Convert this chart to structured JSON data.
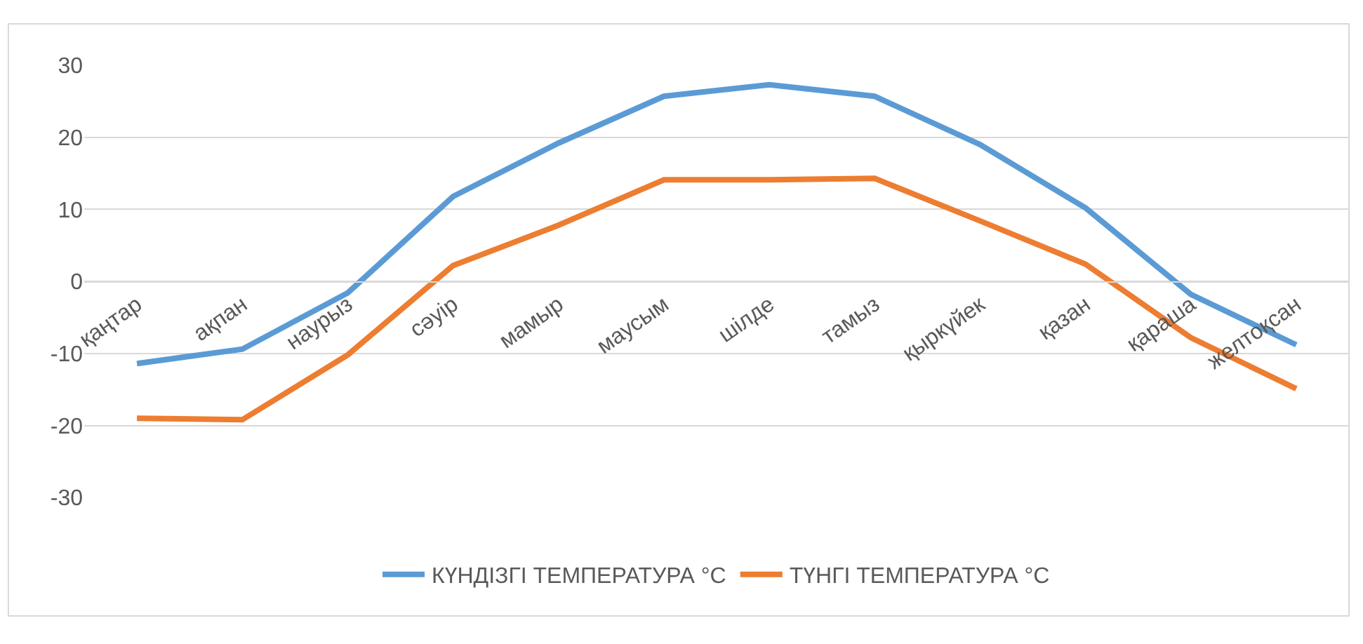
{
  "chart_data": {
    "type": "line",
    "categories": [
      "қаңтар",
      "ақпан",
      "наурыз",
      "сәуір",
      "мамыр",
      "маусым",
      "шілде",
      "тамыз",
      "қыркүйек",
      "қазан",
      "қараша",
      "желтоқсан"
    ],
    "series": [
      {
        "name": "КҮНДІЗГІ ТЕМПЕРАТУРА °C",
        "color": "#5b9bd5",
        "values": [
          -11.4,
          -9.4,
          -1.6,
          11.8,
          19.2,
          25.7,
          27.3,
          25.7,
          19,
          10.2,
          -1.8,
          -8.8
        ]
      },
      {
        "name": "ТҮНГІ ТЕМПЕРАТУРА °C",
        "color": "#ed7d31",
        "values": [
          -19,
          -19.2,
          -10.2,
          2.2,
          7.8,
          14.1,
          14.1,
          14.3,
          8.4,
          2.4,
          -7.8,
          -14.9
        ]
      }
    ],
    "ylim": [
      -30,
      30
    ],
    "yticks": [
      -30,
      -20,
      -10,
      0,
      10,
      20,
      30
    ],
    "grid": "y",
    "legend": "bottom",
    "marker": "none",
    "line_style": "solid"
  }
}
